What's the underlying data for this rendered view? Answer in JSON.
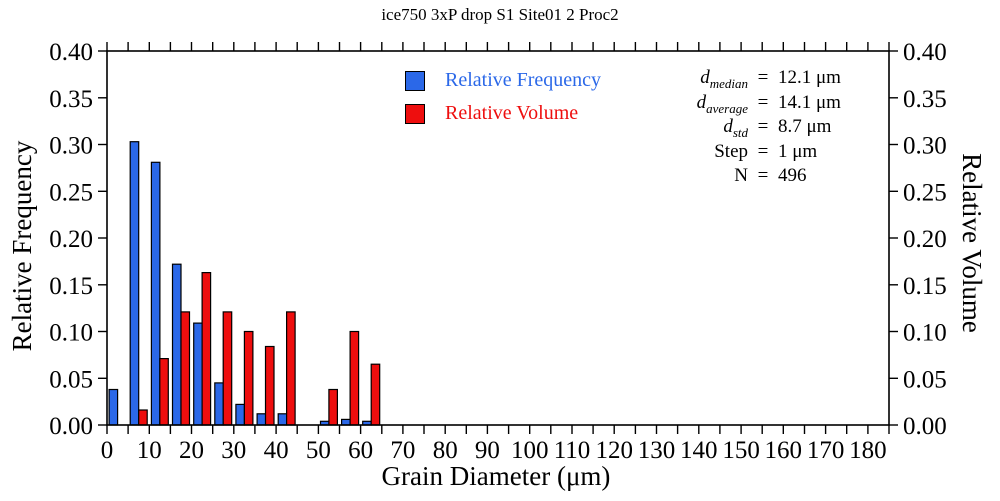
{
  "title": "ice750 3xP drop S1 Site01 2 Proc2",
  "axes": {
    "x_title": "Grain Diameter (μm)",
    "y_left_title": "Relative Frequency",
    "y_right_title": "Relative Volume"
  },
  "legend": {
    "items": [
      {
        "label": "Relative Frequency",
        "color": "#2b68e8"
      },
      {
        "label": "Relative Volume",
        "color": "#ee0e0e"
      }
    ]
  },
  "stats": {
    "rows": [
      {
        "sym": "d",
        "sub": "median",
        "eq": "=",
        "val": "12.1 μm"
      },
      {
        "sym": "d",
        "sub": "average",
        "eq": "=",
        "val": "14.1 μm"
      },
      {
        "sym": "d",
        "sub": "std",
        "eq": "=",
        "val": "8.7 μm"
      },
      {
        "sym": "Step",
        "sub": "",
        "eq": "=",
        "val": "1 μm"
      },
      {
        "sym": "N",
        "sub": "",
        "eq": "=",
        "val": "496"
      }
    ]
  },
  "chart_data": {
    "type": "bar",
    "title": "ice750 3xP drop S1 Site01 2 Proc2",
    "xlabel": "Grain Diameter (μm)",
    "ylabel_left": "Relative Frequency",
    "ylabel_right": "Relative Volume",
    "xlim": [
      0,
      185
    ],
    "ylim": [
      0,
      0.4
    ],
    "x_minor_step": 5,
    "x_tick_labels": [
      0,
      10,
      20,
      30,
      40,
      50,
      60,
      70,
      80,
      90,
      100,
      110,
      120,
      130,
      140,
      150,
      160,
      170,
      180
    ],
    "y_ticks": [
      0.0,
      0.05,
      0.1,
      0.15,
      0.2,
      0.25,
      0.3,
      0.35,
      0.4
    ],
    "bin_width": 5,
    "bin_starts": [
      0,
      5,
      10,
      15,
      20,
      25,
      30,
      35,
      40,
      45,
      50,
      55,
      60
    ],
    "series": [
      {
        "name": "Relative Frequency",
        "color": "#2b68e8",
        "values": [
          0.038,
          0.303,
          0.281,
          0.172,
          0.109,
          0.045,
          0.022,
          0.012,
          0.012,
          0,
          0.004,
          0.006,
          0.004
        ]
      },
      {
        "name": "Relative Volume",
        "color": "#ee0e0e",
        "values": [
          0,
          0.016,
          0.071,
          0.121,
          0.163,
          0.121,
          0.1,
          0.084,
          0.121,
          0,
          0.038,
          0.1,
          0.065
        ]
      }
    ],
    "grid": false,
    "legend_position": "inside-top-center",
    "annotations": [
      "d median = 12.1 μm",
      "d average = 14.1 μm",
      "d std = 8.7 μm",
      "Step = 1 μm",
      "N = 496"
    ]
  }
}
